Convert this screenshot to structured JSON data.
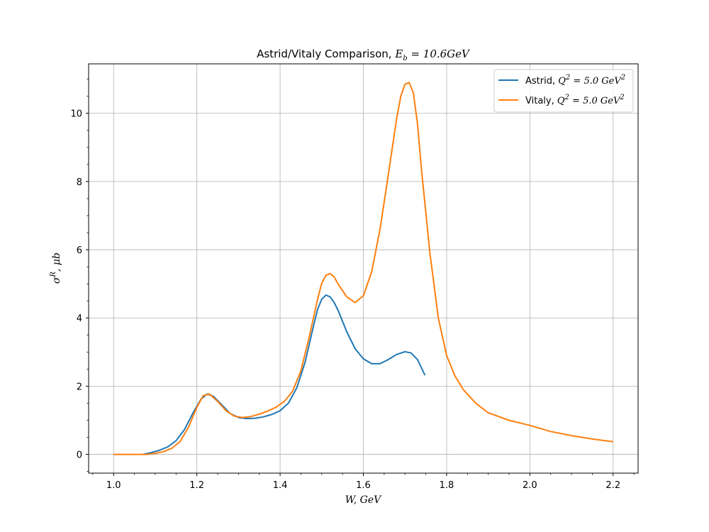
{
  "chart_data": {
    "type": "line",
    "title_prefix": "Astrid/Vitaly Comparison, ",
    "title_math": "E_b = 10.6GeV",
    "xlabel": "W, GeV",
    "ylabel": "σ^R, μb",
    "xlim": [
      0.94,
      2.26
    ],
    "ylim": [
      -0.55,
      11.45
    ],
    "xticks": [
      1.0,
      1.2,
      1.4,
      1.6,
      1.8,
      2.0,
      2.2
    ],
    "xtick_labels": [
      "1.0",
      "1.2",
      "1.4",
      "1.6",
      "1.8",
      "2.0",
      "2.2"
    ],
    "yticks": [
      0,
      2,
      4,
      6,
      8,
      10
    ],
    "ytick_labels": [
      "0",
      "2",
      "4",
      "6",
      "8",
      "10"
    ],
    "grid": true,
    "legend_position": "top-right",
    "series": [
      {
        "name": "Astrid, Q^2 = 5.0 GeV^2",
        "legend_prefix": "Astrid, ",
        "color": "#1f77b4",
        "x": [
          1.07,
          1.09,
          1.11,
          1.13,
          1.15,
          1.17,
          1.19,
          1.21,
          1.225,
          1.24,
          1.26,
          1.28,
          1.3,
          1.32,
          1.34,
          1.36,
          1.38,
          1.4,
          1.42,
          1.44,
          1.46,
          1.48,
          1.49,
          1.5,
          1.51,
          1.52,
          1.53,
          1.54,
          1.56,
          1.58,
          1.6,
          1.62,
          1.64,
          1.66,
          1.68,
          1.7,
          1.715,
          1.73,
          1.748
        ],
        "y": [
          0.0,
          0.05,
          0.12,
          0.22,
          0.4,
          0.72,
          1.2,
          1.62,
          1.77,
          1.7,
          1.45,
          1.2,
          1.08,
          1.05,
          1.06,
          1.1,
          1.17,
          1.28,
          1.5,
          1.95,
          2.7,
          3.75,
          4.25,
          4.55,
          4.67,
          4.62,
          4.45,
          4.2,
          3.6,
          3.1,
          2.8,
          2.66,
          2.66,
          2.78,
          2.93,
          3.01,
          2.97,
          2.78,
          2.32
        ]
      },
      {
        "name": "Vitaly, Q^2 = 5.0 GeV^2",
        "legend_prefix": "Vitaly, ",
        "color": "#ff7f0e",
        "x": [
          1.0,
          1.05,
          1.08,
          1.1,
          1.12,
          1.14,
          1.16,
          1.18,
          1.2,
          1.215,
          1.23,
          1.25,
          1.27,
          1.29,
          1.31,
          1.33,
          1.35,
          1.37,
          1.39,
          1.41,
          1.43,
          1.45,
          1.47,
          1.49,
          1.5,
          1.51,
          1.52,
          1.53,
          1.54,
          1.56,
          1.58,
          1.6,
          1.62,
          1.64,
          1.66,
          1.68,
          1.69,
          1.7,
          1.71,
          1.72,
          1.73,
          1.74,
          1.76,
          1.78,
          1.8,
          1.82,
          1.84,
          1.87,
          1.9,
          1.95,
          2.0,
          2.05,
          2.1,
          2.15,
          2.2
        ],
        "y": [
          0.0,
          0.0,
          0.0,
          0.03,
          0.08,
          0.18,
          0.38,
          0.8,
          1.38,
          1.72,
          1.77,
          1.55,
          1.28,
          1.12,
          1.08,
          1.11,
          1.18,
          1.27,
          1.38,
          1.55,
          1.85,
          2.45,
          3.45,
          4.55,
          5.02,
          5.25,
          5.3,
          5.2,
          4.98,
          4.62,
          4.45,
          4.65,
          5.35,
          6.6,
          8.2,
          9.85,
          10.5,
          10.85,
          10.9,
          10.6,
          9.7,
          8.3,
          5.9,
          4.0,
          2.9,
          2.3,
          1.9,
          1.5,
          1.22,
          1.0,
          0.85,
          0.67,
          0.55,
          0.45,
          0.37
        ]
      }
    ]
  }
}
